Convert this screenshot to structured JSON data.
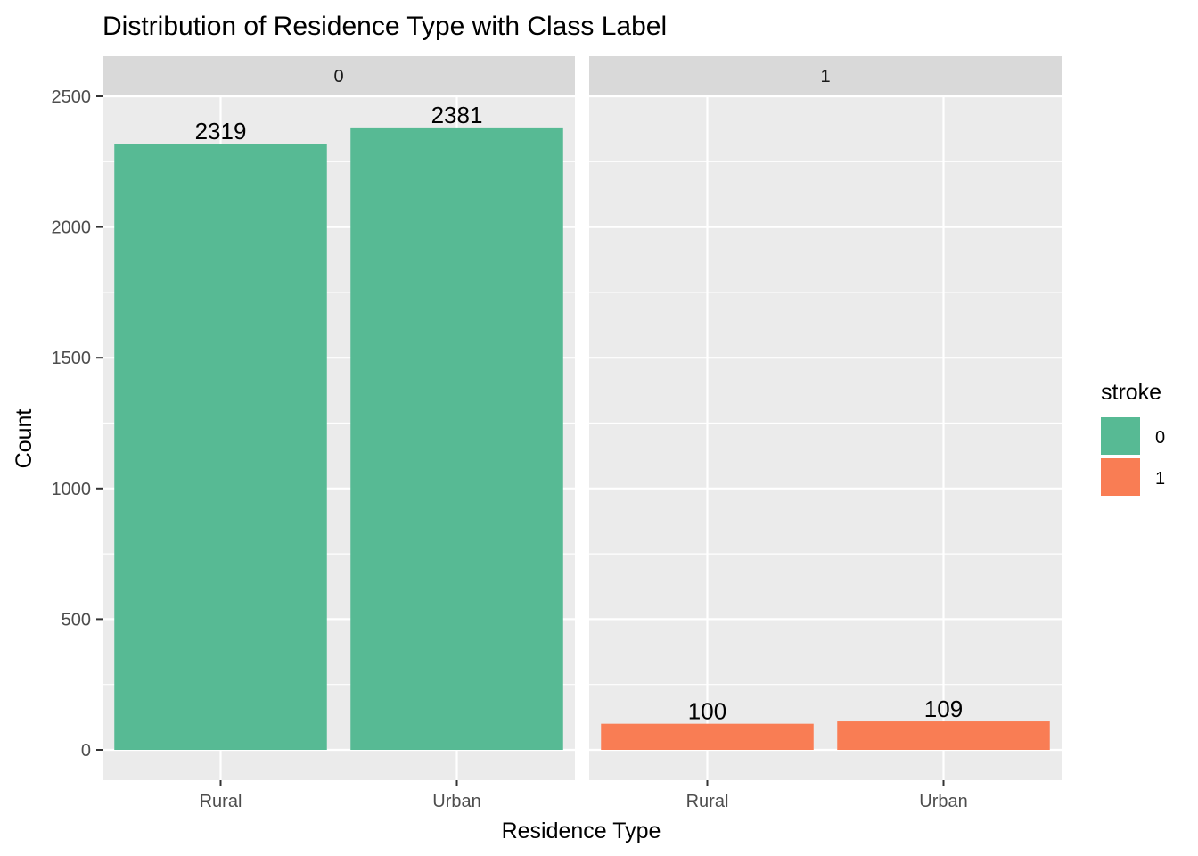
{
  "chart_data": {
    "type": "bar",
    "title": "Distribution of Residence Type with Class Label",
    "xlabel": "Residence Type",
    "ylabel": "Count",
    "categories": [
      "Rural",
      "Urban"
    ],
    "ylim": [
      0,
      2620
    ],
    "yticks": [
      0,
      500,
      1000,
      1500,
      2000,
      2500
    ],
    "grid": true,
    "facets": [
      {
        "label": "0",
        "fill": "#57BA94",
        "values": [
          2319,
          2381
        ]
      },
      {
        "label": "1",
        "fill": "#F97D54",
        "values": [
          100,
          109
        ]
      }
    ],
    "legend": {
      "title": "stroke",
      "position": "right",
      "items": [
        {
          "label": "0",
          "color": "#57BA94"
        },
        {
          "label": "1",
          "color": "#F97D54"
        }
      ]
    }
  }
}
